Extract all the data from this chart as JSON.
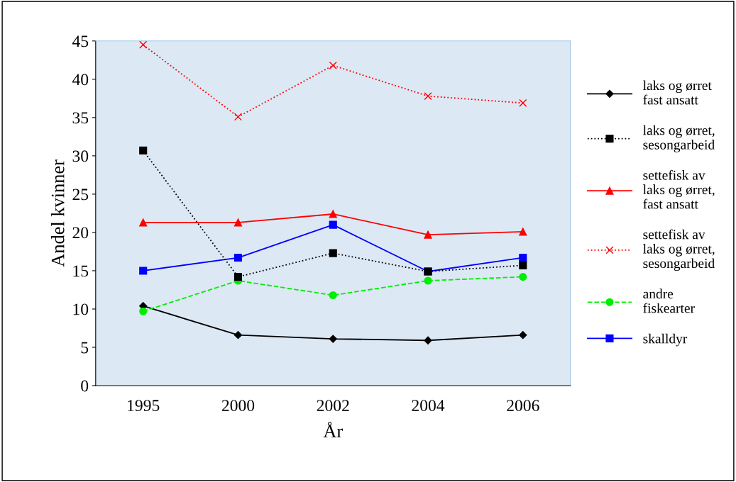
{
  "chart_data": {
    "type": "line",
    "xlabel": "År",
    "ylabel": "Andel kvinner",
    "categories": [
      "1995",
      "2000",
      "2002",
      "2004",
      "2006"
    ],
    "ylim": [
      0,
      45
    ],
    "yticks": [
      0,
      5,
      10,
      15,
      20,
      25,
      30,
      35,
      40,
      45
    ],
    "grid": false,
    "legend": "right",
    "series": [
      {
        "name": "laks og ørret\nfast ansatt",
        "color": "#000000",
        "marker": "diamond",
        "line_style": "solid",
        "values": [
          10.4,
          6.6,
          6.1,
          5.9,
          6.6
        ]
      },
      {
        "name": "laks og ørret,\nsesongarbeid",
        "color": "#000000",
        "marker": "square",
        "line_style": "dotted",
        "values": [
          30.7,
          14.2,
          17.3,
          14.9,
          15.7
        ]
      },
      {
        "name": "settefisk av\nlaks og ørret,\nfast ansatt",
        "color": "#ff0000",
        "marker": "triangle",
        "line_style": "solid",
        "values": [
          21.3,
          21.3,
          22.4,
          19.7,
          20.1
        ]
      },
      {
        "name": "settefisk av\nlaks og ørret,\nsesongarbeid",
        "color": "#ff0000",
        "marker": "cross",
        "line_style": "dotted",
        "values": [
          44.5,
          35.1,
          41.8,
          37.8,
          36.9
        ]
      },
      {
        "name": "andre\nfiskearter",
        "color": "#00ee00",
        "marker": "circle",
        "line_style": "dashed",
        "values": [
          9.7,
          13.7,
          11.8,
          13.7,
          14.2
        ]
      },
      {
        "name": "skalldyr",
        "color": "#0000ff",
        "marker": "square",
        "line_style": "solid",
        "values": [
          15.0,
          16.7,
          21.0,
          14.9,
          16.7
        ]
      }
    ]
  }
}
